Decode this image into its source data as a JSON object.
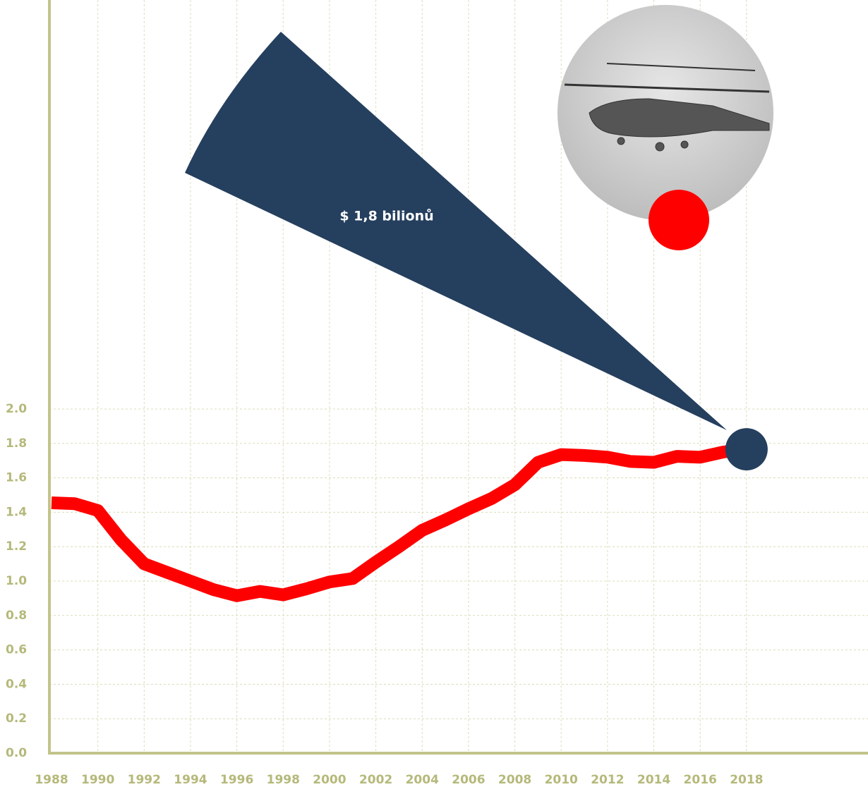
{
  "chart_data": {
    "type": "line",
    "annotation": "$ 1,8 bilionů",
    "x": [
      1988,
      1989,
      1990,
      1991,
      1992,
      1993,
      1994,
      1995,
      1996,
      1997,
      1998,
      1999,
      2000,
      2001,
      2002,
      2003,
      2004,
      2005,
      2006,
      2007,
      2008,
      2009,
      2010,
      2011,
      2012,
      2013,
      2014,
      2015,
      2016,
      2017,
      2018
    ],
    "series": [
      {
        "color": "#ff0000",
        "values": [
          1.455,
          1.45,
          1.41,
          1.24,
          1.1,
          1.05,
          1.0,
          0.95,
          0.915,
          0.94,
          0.92,
          0.955,
          0.995,
          1.015,
          1.11,
          1.2,
          1.295,
          1.355,
          1.42,
          1.48,
          1.56,
          1.69,
          1.735,
          1.73,
          1.72,
          1.695,
          1.69,
          1.725,
          1.72,
          1.75,
          1.766
        ]
      }
    ],
    "highlight_color": "#253f5e",
    "xlim": [
      1988,
      2023
    ],
    "xticks": [
      1988,
      1990,
      1992,
      1994,
      1996,
      1998,
      2000,
      2002,
      2004,
      2006,
      2008,
      2010,
      2012,
      2014,
      2016,
      2018
    ],
    "ylim": [
      0,
      2
    ],
    "yticks": [
      {
        "value": 0,
        "label": "0.0"
      },
      0.2,
      0.4,
      0.6,
      0.8,
      {
        "value": 1,
        "label": "1.0"
      },
      1.2,
      1.4,
      1.6,
      1.8,
      {
        "value": 2,
        "label": "2.0"
      }
    ],
    "grid": true
  }
}
